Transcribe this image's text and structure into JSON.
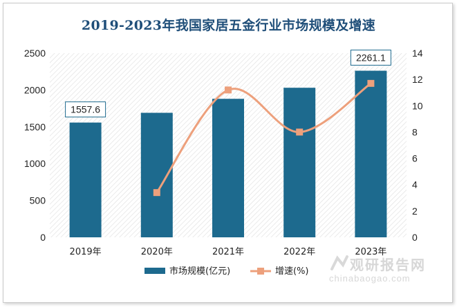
{
  "chart_data": {
    "type": "bar",
    "title": "2019-2023年我国家居五金行业市场规模及增速",
    "categories": [
      "2019年",
      "2020年",
      "2021年",
      "2022年",
      "2023年"
    ],
    "series": [
      {
        "name": "市场规模(亿元)",
        "kind": "bar",
        "axis": "left",
        "color": "#1d6a8e",
        "values": [
          1557.6,
          1690,
          1880,
          2030,
          2261.1
        ]
      },
      {
        "name": "增速(%)",
        "kind": "line",
        "axis": "right",
        "color": "#eda07c",
        "values": [
          null,
          3.4,
          11.2,
          8.0,
          11.7
        ]
      }
    ],
    "y_left": {
      "min": 0,
      "max": 2500,
      "step": 500,
      "ticks": [
        "0",
        "500",
        "1000",
        "1500",
        "2000",
        "2500"
      ]
    },
    "y_right": {
      "min": 0,
      "max": 14,
      "step": 2,
      "ticks": [
        "0",
        "2",
        "4",
        "6",
        "8",
        "10",
        "12",
        "14"
      ]
    },
    "data_labels": [
      {
        "index": 0,
        "text": "1557.6"
      },
      {
        "index": 4,
        "text": "2261.1"
      }
    ],
    "legend_position": "bottom-center",
    "plot_background": "diagonal hatch"
  },
  "watermark": {
    "cn": "观研报告网",
    "en": "chinabaogao.com"
  }
}
